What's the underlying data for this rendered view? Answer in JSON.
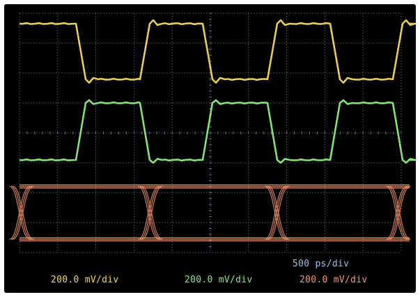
{
  "screen": {
    "timebase": "500  ps/div",
    "channels": [
      {
        "id": "ch1",
        "scale_label": "200.0 mV/div",
        "color": "#f5d65c",
        "signal": "square"
      },
      {
        "id": "ch2",
        "scale_label": "200.0 mV/div",
        "color": "#8ded7c",
        "signal": "square"
      },
      {
        "id": "ch3",
        "scale_label": "200.0 mV/div",
        "color": "#f5956a",
        "signal": "eye-diagram"
      }
    ],
    "colors": {
      "background": "#000000",
      "grid": "#5f6f86",
      "timebase_text": "#9fc0e6"
    }
  }
}
